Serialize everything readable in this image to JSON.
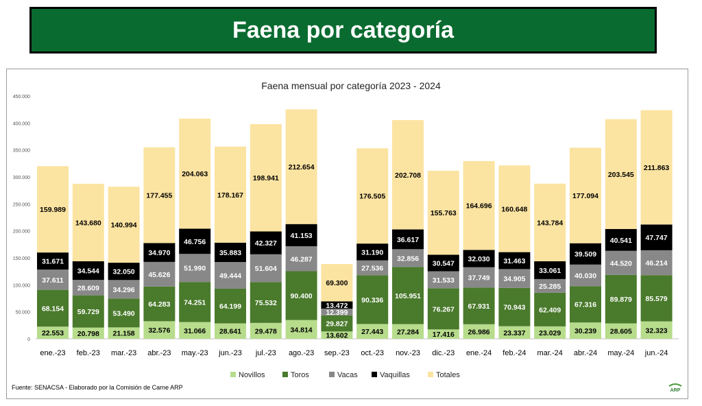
{
  "banner": {
    "title": "Faena por categoría"
  },
  "footer": {
    "source": "Fuente: SENACSA - Elaborado por la Comisión de Carne ARP",
    "logo_text": "ARP"
  },
  "chart_data": {
    "type": "bar",
    "stacked": true,
    "title": "Faena mensual por categoría 2023 - 2024",
    "xlabel": "",
    "ylabel": "",
    "ylim": [
      0,
      450000
    ],
    "y_ticks": [
      0,
      50000,
      100000,
      150000,
      200000,
      250000,
      300000,
      350000,
      400000,
      450000
    ],
    "y_tick_labels": [
      "0",
      "50.000",
      "100.000",
      "150.000",
      "200.000",
      "250.000",
      "300.000",
      "350.000",
      "400.000",
      "450.000"
    ],
    "grid": false,
    "legend": "bottom",
    "categories": [
      "ene.-23",
      "feb.-23",
      "mar.-23",
      "abr.-23",
      "may.-23",
      "jun.-23",
      "jul.-23",
      "ago.-23",
      "sep.-23",
      "oct.-23",
      "nov.-23",
      "dic.-23",
      "ene.-24",
      "feb.-24",
      "mar.-24",
      "abr.-24",
      "may.-24",
      "jun.-24"
    ],
    "series": [
      {
        "name": "Novillos",
        "color": "#b7dc8c",
        "label_color": "#000000",
        "values": [
          22553,
          20798,
          21158,
          32576,
          31066,
          28641,
          29478,
          34814,
          13602,
          27443,
          27284,
          17416,
          26986,
          23337,
          23029,
          30239,
          28605,
          32323
        ],
        "labels": [
          "22.553",
          "20.798",
          "21.158",
          "32.576",
          "31.066",
          "28.641",
          "29.478",
          "34.814",
          "13.602",
          "27.443",
          "27.284",
          "17.416",
          "26.986",
          "23.337",
          "23.029",
          "30.239",
          "28.605",
          "32.323"
        ]
      },
      {
        "name": "Toros",
        "color": "#4a7a2c",
        "label_color": "#ffffff",
        "values": [
          68154,
          59729,
          53490,
          64283,
          74251,
          64199,
          75532,
          90400,
          29827,
          90336,
          105951,
          76267,
          67931,
          70943,
          62409,
          67316,
          89879,
          85579
        ],
        "labels": [
          "68.154",
          "59.729",
          "53.490",
          "64.283",
          "74.251",
          "64.199",
          "75.532",
          "90.400",
          "29.827",
          "90.336",
          "105.951",
          "76.267",
          "67.931",
          "70.943",
          "62.409",
          "67.316",
          "89.879",
          "85.579"
        ]
      },
      {
        "name": "Vacas",
        "color": "#888888",
        "label_color": "#ffffff",
        "values": [
          37611,
          28609,
          34296,
          45626,
          51990,
          49444,
          51604,
          46287,
          12399,
          27536,
          32856,
          31533,
          37749,
          34905,
          25285,
          40030,
          44520,
          46214
        ],
        "labels": [
          "37.611",
          "28.609",
          "34.296",
          "45.626",
          "51.990",
          "49.444",
          "51.604",
          "46.287",
          "12.399",
          "27.536",
          "32.856",
          "31.533",
          "37.749",
          "34.905",
          "25.285",
          "40.030",
          "44.520",
          "46.214"
        ]
      },
      {
        "name": "Vaquillas",
        "color": "#000000",
        "label_color": "#ffffff",
        "values": [
          31671,
          34544,
          32050,
          34970,
          46756,
          35883,
          42327,
          41153,
          13472,
          31190,
          36617,
          30547,
          32030,
          31463,
          33061,
          39509,
          40541,
          47747
        ],
        "labels": [
          "31.671",
          "34.544",
          "32.050",
          "34.970",
          "46.756",
          "35.883",
          "42.327",
          "41.153",
          "13.472",
          "31.190",
          "36.617",
          "30.547",
          "32.030",
          "31.463",
          "33.061",
          "39.509",
          "40.541",
          "47.747"
        ]
      },
      {
        "name": "Totales",
        "color": "#fbe3a1",
        "label_color": "#000000",
        "values": [
          159989,
          143680,
          140994,
          177455,
          204063,
          178167,
          198941,
          212654,
          69300,
          176505,
          202708,
          155763,
          164696,
          160648,
          143784,
          177094,
          203545,
          211863
        ],
        "labels": [
          "159.989",
          "143.680",
          "140.994",
          "177.455",
          "204.063",
          "178.167",
          "198.941",
          "212.654",
          "69.300",
          "176.505",
          "202.708",
          "155.763",
          "164.696",
          "160.648",
          "143.784",
          "177.094",
          "203.545",
          "211.863"
        ]
      }
    ]
  }
}
